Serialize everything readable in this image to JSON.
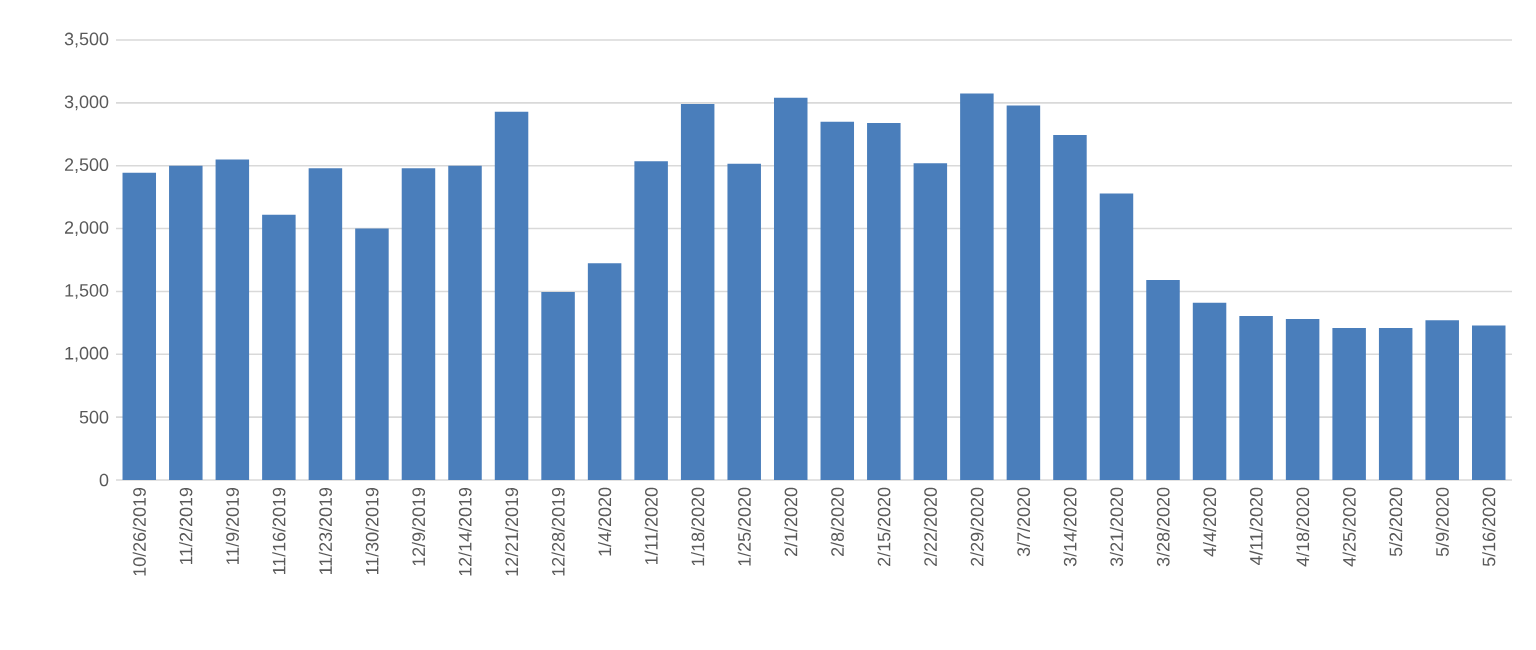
{
  "chart_data": {
    "type": "bar",
    "categories": [
      "10/26/2019",
      "11/2/2019",
      "11/9/2019",
      "11/16/2019",
      "11/23/2019",
      "11/30/2019",
      "12/9/2019",
      "12/14/2019",
      "12/21/2019",
      "12/28/2019",
      "1/4/2020",
      "1/11/2020",
      "1/18/2020",
      "1/25/2020",
      "2/1/2020",
      "2/8/2020",
      "2/15/2020",
      "2/22/2020",
      "2/29/2020",
      "3/7/2020",
      "3/14/2020",
      "3/21/2020",
      "3/28/2020",
      "4/4/2020",
      "4/11/2020",
      "4/18/2020",
      "4/25/2020",
      "5/2/2020",
      "5/9/2020",
      "5/16/2020"
    ],
    "values": [
      2445,
      2500,
      2550,
      2110,
      2480,
      2000,
      2480,
      2500,
      2930,
      1495,
      1725,
      2535,
      2990,
      2515,
      3040,
      2850,
      2840,
      2520,
      3075,
      2980,
      2745,
      2280,
      1590,
      1410,
      1305,
      1280,
      1210,
      1210,
      1270,
      1230
    ],
    "color": "#4a7ebb",
    "ylim": [
      0,
      3500
    ],
    "yticks": [
      {
        "value": 0,
        "label": "0"
      },
      {
        "value": 500,
        "label": "500"
      },
      {
        "value": 1000,
        "label": "1,000"
      },
      {
        "value": 1500,
        "label": "1,500"
      },
      {
        "value": 2000,
        "label": "2,000"
      },
      {
        "value": 2500,
        "label": "2,500"
      },
      {
        "value": 3000,
        "label": "3,000"
      },
      {
        "value": 3500,
        "label": "3,500"
      }
    ],
    "grid": "y"
  }
}
